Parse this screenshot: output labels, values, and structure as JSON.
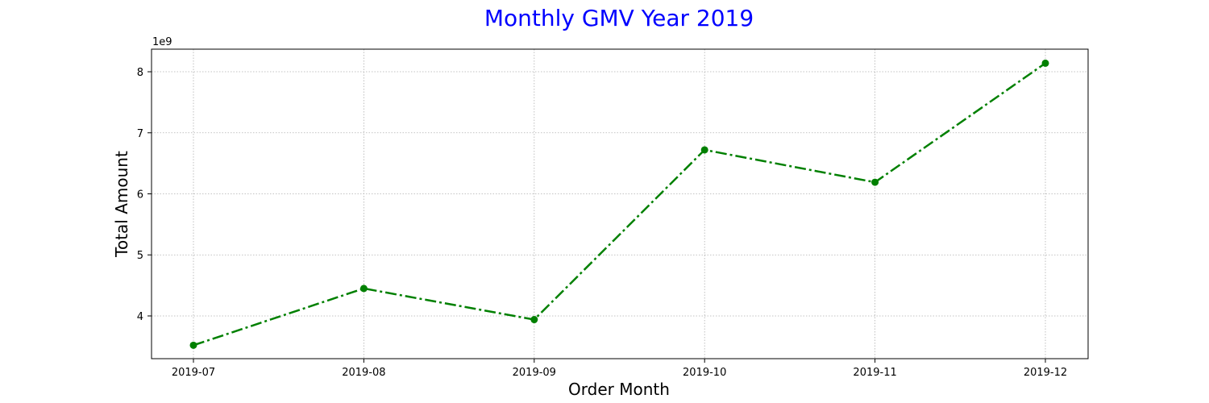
{
  "chart_data": {
    "type": "line",
    "title": "Monthly GMV Year 2019",
    "xlabel": "Order Month",
    "ylabel": "Total Amount",
    "y_scale_label": "1e9",
    "categories": [
      "2019-07",
      "2019-08",
      "2019-09",
      "2019-10",
      "2019-11",
      "2019-12"
    ],
    "series": [
      {
        "values": [
          3520000000.0,
          4450000000.0,
          3940000000.0,
          6720000000.0,
          6190000000.0,
          8140000000.0
        ]
      }
    ],
    "yticks": [
      4,
      5,
      6,
      7,
      8
    ],
    "ylim": [
      3300000000.0,
      8370000000.0
    ],
    "grid": true,
    "colors": {
      "line": "#008000",
      "title": "#0000ff"
    },
    "line_style": "dash-dot",
    "marker": "circle"
  }
}
